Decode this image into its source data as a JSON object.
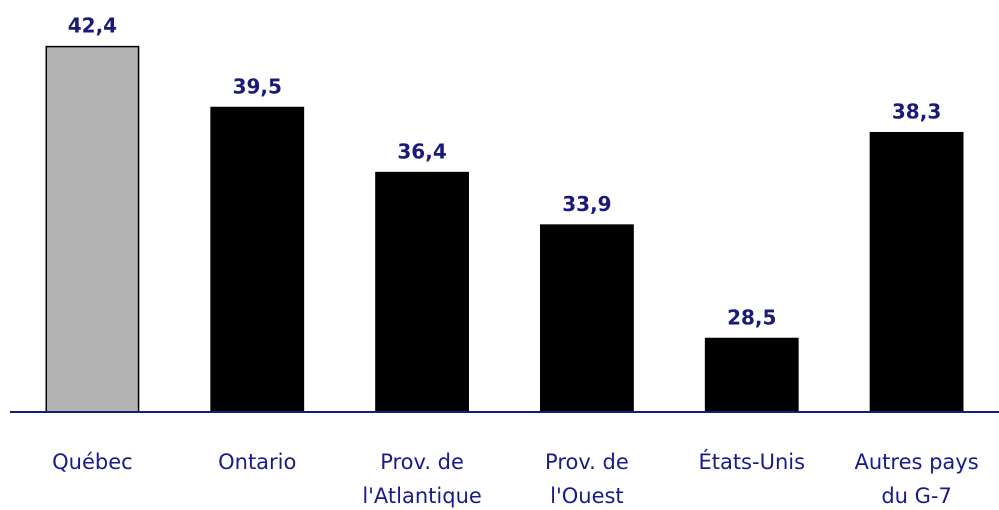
{
  "chart_data": {
    "type": "bar",
    "categories": [
      "Québec",
      "Ontario",
      "Prov. de\nl'Atlantique",
      "Prov. de\nl'Ouest",
      "États-Unis",
      "Autres pays\ndu G-7"
    ],
    "values": [
      42.4,
      39.5,
      36.4,
      33.9,
      28.5,
      38.3
    ],
    "value_labels": [
      "42,4",
      "39,5",
      "36,4",
      "33,9",
      "28,5",
      "38,3"
    ],
    "colors": [
      "#b3b3b3",
      "#000000",
      "#000000",
      "#000000",
      "#000000",
      "#000000"
    ],
    "ylim": [
      25,
      45
    ]
  }
}
